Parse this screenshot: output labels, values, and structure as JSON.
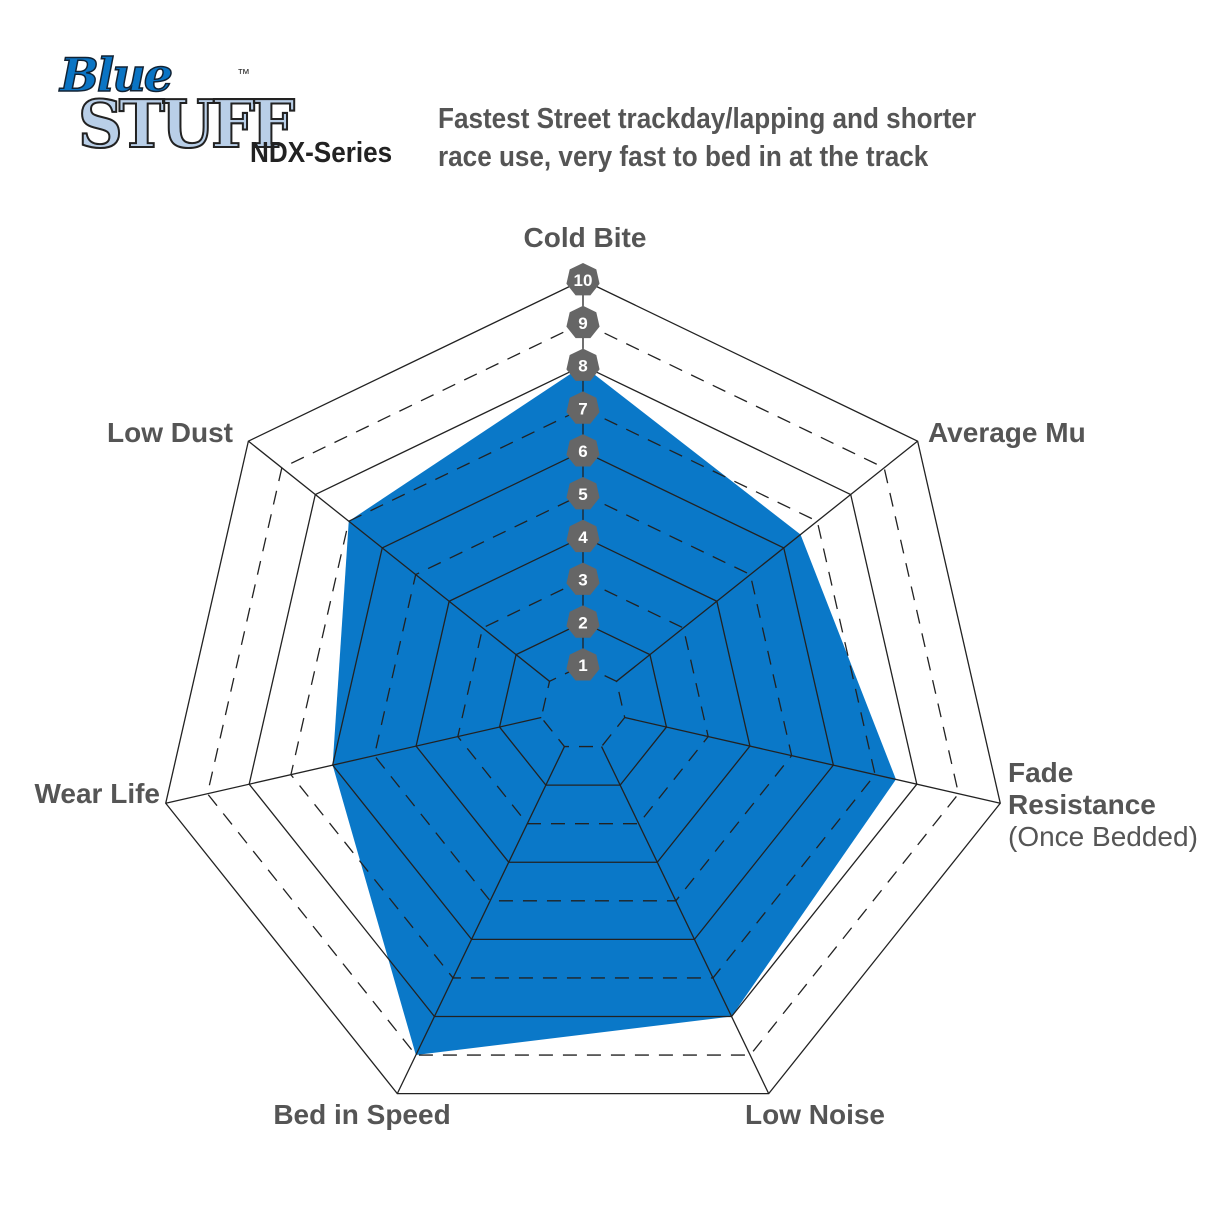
{
  "logo": {
    "text": "Blue Stuff",
    "tm": "™"
  },
  "header": {
    "series": "NDX-Series",
    "subtitle_line1": "Fastest Street trackday/lapping and shorter",
    "subtitle_line2": "race use, very fast to bed in at the track"
  },
  "chart_data": {
    "type": "radar",
    "axes": [
      "Cold Bite",
      "Average Mu",
      "Fade Resistance",
      "Low Noise",
      "Bed in Speed",
      "Wear Life",
      "Low Dust"
    ],
    "axis_sublabel": {
      "Fade Resistance": "(Once Bedded)"
    },
    "values": [
      8,
      6.5,
      7.5,
      8,
      9,
      6,
      7
    ],
    "range": [
      0,
      10
    ],
    "ticks": [
      1,
      2,
      3,
      4,
      5,
      6,
      7,
      8,
      9,
      10
    ],
    "fill_color": "#0a78c8",
    "badge_color": "#666666"
  }
}
